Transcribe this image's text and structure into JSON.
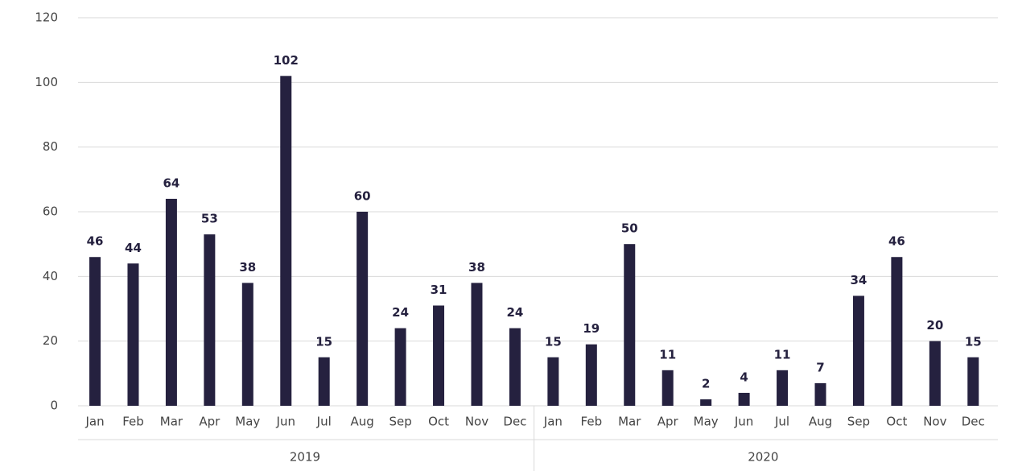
{
  "chart_data": {
    "type": "bar",
    "categories": [
      "Jan",
      "Feb",
      "Mar",
      "Apr",
      "May",
      "Jun",
      "Jul",
      "Aug",
      "Sep",
      "Oct",
      "Nov",
      "Dec",
      "Jan",
      "Feb",
      "Mar",
      "Apr",
      "May",
      "Jun",
      "Jul",
      "Aug",
      "Sep",
      "Oct",
      "Nov",
      "Dec"
    ],
    "groups": [
      "2019",
      "2020"
    ],
    "values": [
      46,
      44,
      64,
      53,
      38,
      102,
      15,
      60,
      24,
      31,
      38,
      24,
      15,
      19,
      50,
      11,
      2,
      4,
      11,
      7,
      34,
      46,
      20,
      15
    ],
    "color": "#25213f",
    "ylim": [
      0,
      120
    ],
    "yticks": [
      0,
      20,
      40,
      60,
      80,
      100,
      120
    ],
    "grid": true
  }
}
